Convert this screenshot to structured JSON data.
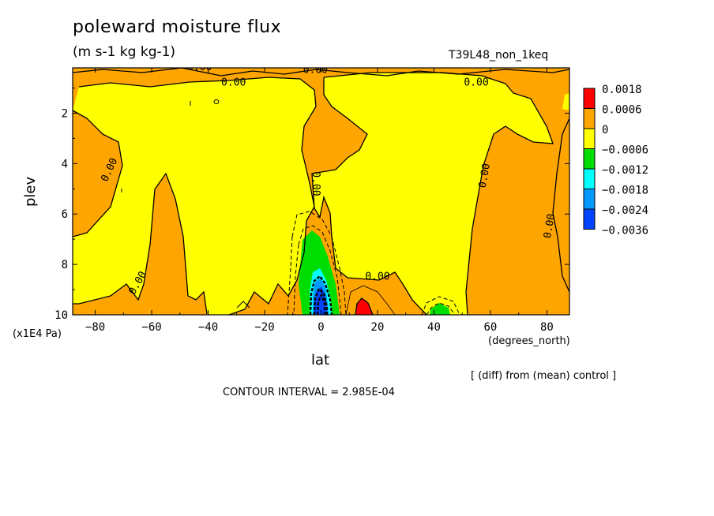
{
  "chart_data": {
    "type": "heatmap",
    "title": "poleward moisture flux",
    "units": "(m s-1 kg kg-1)",
    "run_label": "T39L48_non_1keq",
    "xlabel": "lat",
    "xunit": "(degrees_north)",
    "ylabel": "plev",
    "yunit": "(x1E4 Pa)",
    "note": "[ (diff) from (mean) control ]",
    "contour_interval": "CONTOUR INTERVAL = 2.985E-04",
    "xlim": [
      -88,
      88
    ],
    "ylim": [
      10,
      0.2
    ],
    "x_ticks": [
      -80,
      -60,
      -40,
      -20,
      0,
      20,
      40,
      60,
      80
    ],
    "x_tick_labels": [
      "−80",
      "−60",
      "−40",
      "−20",
      "0",
      "20",
      "40",
      "60",
      "80"
    ],
    "y_ticks": [
      2,
      4,
      6,
      8,
      10
    ],
    "y_tick_labels": [
      "2",
      "4",
      "6",
      "8",
      "10"
    ],
    "contour_labels": [
      {
        "text": "0.00",
        "lat": -74,
        "plev": 4.3,
        "angle": -65
      },
      {
        "text": "0.00",
        "lat": -64,
        "plev": 8.8,
        "angle": -60
      },
      {
        "text": "0.00",
        "lat": -43,
        "plev": 0.3,
        "angle": 0
      },
      {
        "text": "0.00",
        "lat": -31,
        "plev": 0.9,
        "angle": 0
      },
      {
        "text": "0.00",
        "lat": -2,
        "plev": 0.4,
        "angle": 0
      },
      {
        "text": "0.00",
        "lat": -3,
        "plev": 4.8,
        "angle": 90
      },
      {
        "text": "0.00",
        "lat": 20,
        "plev": 8.6,
        "angle": 0
      },
      {
        "text": "0.00",
        "lat": 55,
        "plev": 0.9,
        "angle": 0
      },
      {
        "text": "0.00",
        "lat": 59,
        "plev": 4.5,
        "angle": -80
      },
      {
        "text": "0.00",
        "lat": 82,
        "plev": 6.5,
        "angle": -80
      }
    ],
    "colorbar": {
      "labels": [
        "0.0018",
        "0.0006",
        "0",
        "−0.0006",
        "−0.0012",
        "−0.0018",
        "−0.0024",
        "−0.0036"
      ],
      "colors": [
        "#ff0000",
        "#ffa500",
        "#ffff00",
        "#00dd00",
        "#00ffff",
        "#0099ff",
        "#0044ff"
      ]
    },
    "colors": {
      "positive_small": "#ffa500",
      "negative_small": "#ffff00",
      "positive_large": "#ff0000",
      "neg_green": "#00dd00",
      "neg_cyan": "#00ffff",
      "neg_lightblue": "#0099ff",
      "neg_blue": "#0044ff"
    }
  }
}
